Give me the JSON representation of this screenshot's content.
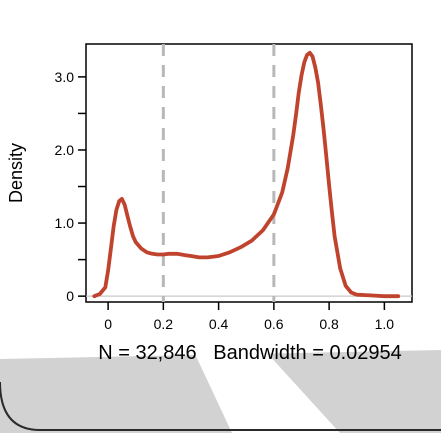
{
  "chart_data": {
    "type": "line",
    "title": "",
    "xlabel": "",
    "ylabel": "Density",
    "xlim": [
      -0.08,
      1.1
    ],
    "ylim": [
      -0.08,
      3.45
    ],
    "x_ticks": [
      {
        "value": 0,
        "label": "0"
      },
      {
        "value": 0.2,
        "label": "0.2"
      },
      {
        "value": 0.4,
        "label": "0.4"
      },
      {
        "value": 0.6,
        "label": "0.6"
      },
      {
        "value": 0.8,
        "label": "0.8"
      },
      {
        "value": 1.0,
        "label": "1.0"
      }
    ],
    "y_ticks": [
      {
        "value": 0,
        "label": "0"
      },
      {
        "value": 0.5,
        "label": ""
      },
      {
        "value": 1.0,
        "label": "1.0"
      },
      {
        "value": 1.5,
        "label": ""
      },
      {
        "value": 2.0,
        "label": "2.0"
      },
      {
        "value": 2.5,
        "label": ""
      },
      {
        "value": 3.0,
        "label": "3.0"
      }
    ],
    "series": [
      {
        "color": "#c0432e",
        "x": [
          -0.05,
          -0.03,
          -0.01,
          0.0,
          0.01,
          0.02,
          0.03,
          0.04,
          0.05,
          0.06,
          0.07,
          0.08,
          0.09,
          0.1,
          0.12,
          0.14,
          0.16,
          0.18,
          0.2,
          0.22,
          0.25,
          0.28,
          0.3,
          0.33,
          0.36,
          0.4,
          0.44,
          0.48,
          0.52,
          0.56,
          0.6,
          0.63,
          0.65,
          0.67,
          0.68,
          0.69,
          0.7,
          0.71,
          0.72,
          0.73,
          0.74,
          0.75,
          0.76,
          0.77,
          0.78,
          0.79,
          0.8,
          0.81,
          0.82,
          0.84,
          0.86,
          0.88,
          0.9,
          0.95,
          1.0,
          1.05
        ],
        "y": [
          0.0,
          0.03,
          0.12,
          0.35,
          0.65,
          0.95,
          1.18,
          1.3,
          1.33,
          1.25,
          1.1,
          0.95,
          0.82,
          0.74,
          0.65,
          0.6,
          0.58,
          0.57,
          0.57,
          0.58,
          0.58,
          0.56,
          0.55,
          0.53,
          0.53,
          0.55,
          0.6,
          0.67,
          0.76,
          0.9,
          1.12,
          1.42,
          1.75,
          2.2,
          2.48,
          2.78,
          3.02,
          3.2,
          3.3,
          3.33,
          3.28,
          3.13,
          2.92,
          2.62,
          2.28,
          1.9,
          1.52,
          1.15,
          0.82,
          0.38,
          0.14,
          0.05,
          0.02,
          0.01,
          0.0,
          0.0
        ]
      }
    ],
    "vlines": [
      {
        "x": 0.2,
        "style": "dashed",
        "color": "#b8b8b8"
      },
      {
        "x": 0.6,
        "style": "dashed",
        "color": "#b8b8b8"
      }
    ],
    "baseline_color": "#c8c8c8",
    "grid": false,
    "footer": "N = 32,846   Bandwidth = 0.02954"
  }
}
